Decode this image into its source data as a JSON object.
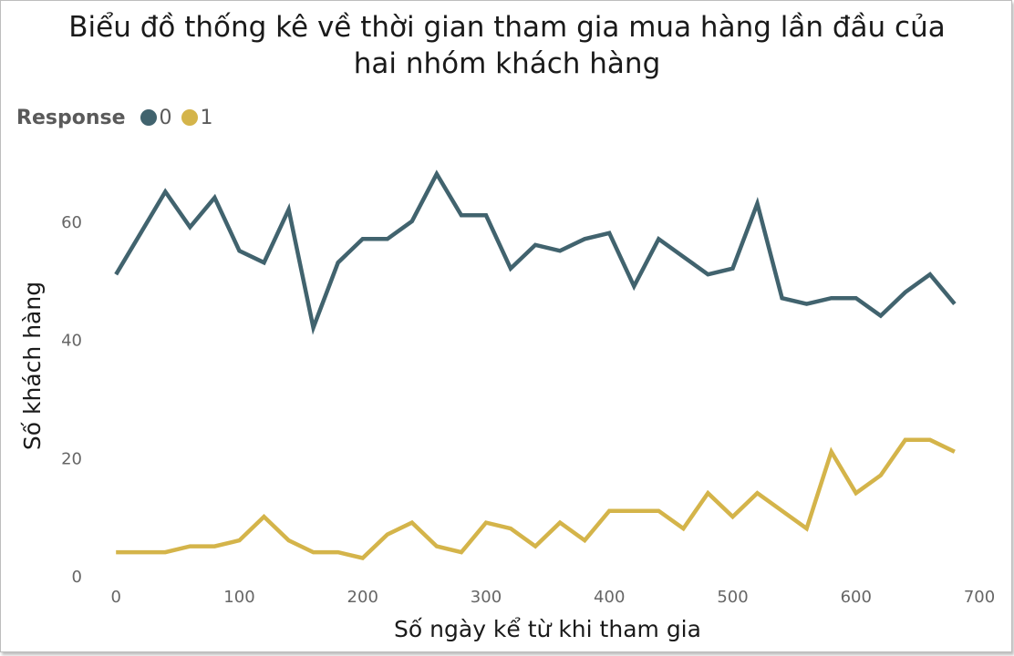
{
  "title_line1": "Biểu đồ thống kê về thời gian tham gia mua hàng lần đầu của",
  "title_line2": "hai nhóm khách hàng",
  "legend": {
    "title": "Response",
    "items": [
      {
        "label": "0",
        "color": "#41636e"
      },
      {
        "label": "1",
        "color": "#d4b44a"
      }
    ]
  },
  "chart_data": {
    "type": "line",
    "title": "Biểu đồ thống kê về thời gian tham gia mua hàng lần đầu của hai nhóm khách hàng",
    "xlabel": "Số ngày kể từ khi tham gia",
    "ylabel": "Số khách hàng",
    "xlim": [
      -12,
      700
    ],
    "ylim": [
      0,
      72
    ],
    "xticks": [
      0,
      100,
      200,
      300,
      400,
      500,
      600,
      700
    ],
    "yticks": [
      0,
      20,
      40,
      60
    ],
    "grid": false,
    "legend_position": "top-left",
    "x": [
      0,
      20,
      40,
      60,
      80,
      100,
      120,
      140,
      160,
      180,
      200,
      220,
      240,
      260,
      280,
      300,
      320,
      340,
      360,
      380,
      400,
      420,
      440,
      460,
      480,
      500,
      520,
      540,
      560,
      580,
      600,
      620,
      640,
      660,
      680
    ],
    "series": [
      {
        "name": "0",
        "color": "#41636e",
        "values": [
          51,
          58,
          65,
          59,
          64,
          55,
          53,
          62,
          42,
          53,
          57,
          57,
          60,
          68,
          61,
          61,
          52,
          56,
          55,
          57,
          58,
          49,
          57,
          54,
          51,
          52,
          63,
          47,
          46,
          47,
          47,
          44,
          48,
          51,
          46
        ]
      },
      {
        "name": "1",
        "color": "#d4b44a",
        "values": [
          4,
          4,
          4,
          5,
          5,
          6,
          10,
          6,
          4,
          4,
          3,
          7,
          9,
          5,
          4,
          9,
          8,
          5,
          9,
          6,
          11,
          11,
          11,
          8,
          14,
          10,
          14,
          11,
          8,
          21,
          14,
          17,
          23,
          23,
          21
        ]
      }
    ]
  }
}
